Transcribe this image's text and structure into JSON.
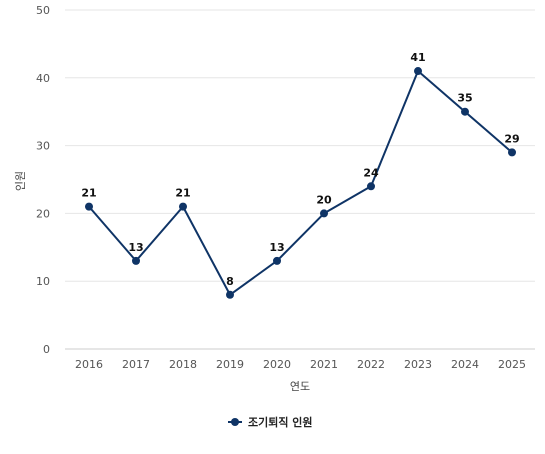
{
  "chart_data": {
    "type": "line",
    "categories": [
      "2016",
      "2017",
      "2018",
      "2019",
      "2020",
      "2021",
      "2022",
      "2023",
      "2024",
      "2025"
    ],
    "series": [
      {
        "name": "조기퇴직 인원",
        "values": [
          21,
          13,
          21,
          8,
          13,
          20,
          24,
          41,
          35,
          29
        ],
        "color": "#0f3466"
      }
    ],
    "xlabel": "연도",
    "ylabel": "인원",
    "ylim": [
      0,
      50
    ],
    "yticks": [
      0,
      10,
      20,
      30,
      40,
      50
    ],
    "grid": true,
    "legend": "bottom-center",
    "data_labels": true
  }
}
